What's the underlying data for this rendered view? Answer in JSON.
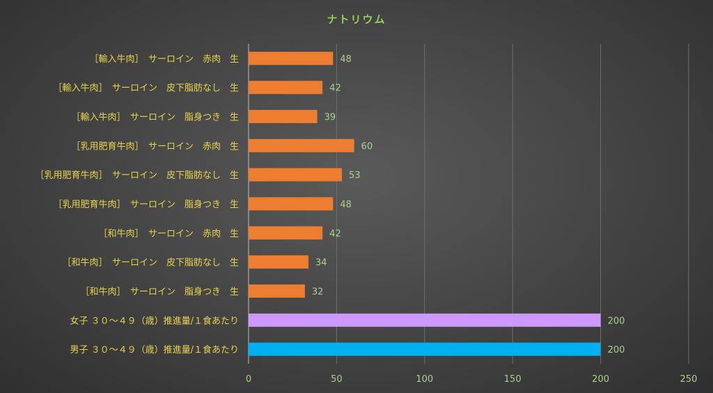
{
  "chart_data": {
    "type": "bar",
    "orientation": "horizontal",
    "title": "ナトリウム",
    "xlabel": "",
    "ylabel": "",
    "xlim": [
      0,
      250
    ],
    "ticks": [
      "0",
      "50",
      "100",
      "150",
      "200",
      "250"
    ],
    "grid": true,
    "categories": [
      "［輸入牛肉］　サーロイン　赤肉　生",
      "［輸入牛肉］　サーロイン　皮下脂肪なし　生",
      "［輸入牛肉］　サーロイン　脂身つき　生",
      "［乳用肥育牛肉］　サーロイン　赤肉　生",
      "［乳用肥育牛肉］　サーロイン　皮下脂肪なし　生",
      "［乳用肥育牛肉］　サーロイン　脂身つき　生",
      "［和牛肉］　サーロイン　赤肉　生",
      "［和牛肉］　サーロイン　皮下脂肪なし　生",
      "［和牛肉］　サーロイン　脂身つき　生",
      "女子 ３０～４９（歳）推進量/１食あたり",
      "男子 ３０～４９（歳）推進量/１食あたり"
    ],
    "values": [
      48,
      42,
      39,
      60,
      53,
      48,
      42,
      34,
      32,
      200,
      200
    ],
    "colors": [
      "#ed7d31",
      "#ed7d31",
      "#ed7d31",
      "#ed7d31",
      "#ed7d31",
      "#ed7d31",
      "#ed7d31",
      "#ed7d31",
      "#ed7d31",
      "#cc99ff",
      "#00b0f0"
    ]
  }
}
